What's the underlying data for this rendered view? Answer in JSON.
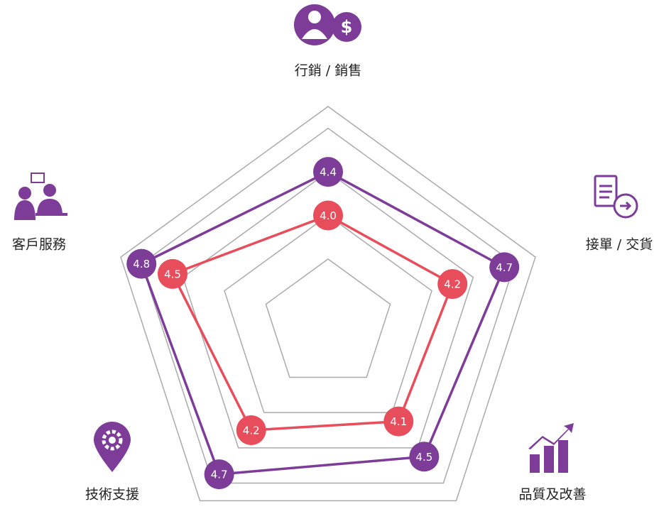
{
  "chart_data": {
    "type": "radar",
    "categories": [
      "行銷 / 銷售",
      "接單 / 交貨",
      "品質及改善",
      "技術支援",
      "客戶服務"
    ],
    "series": [
      {
        "color": "#7d3c98",
        "values": [
          4.4,
          4.7,
          4.5,
          4.7,
          4.8
        ],
        "value_labels": [
          "4.4",
          "4.7",
          "4.5",
          "4.7",
          "4.8"
        ]
      },
      {
        "color": "#e84d5b",
        "values": [
          4.0,
          4.2,
          4.1,
          4.2,
          4.5
        ],
        "value_labels": [
          "4.0",
          "4.2",
          "4.1",
          "4.2",
          "4.5"
        ]
      }
    ],
    "ylim": [
      3,
      5
    ],
    "yticks": [
      3.6,
      4.0,
      4.4,
      4.8,
      5.0
    ],
    "grid": true
  }
}
